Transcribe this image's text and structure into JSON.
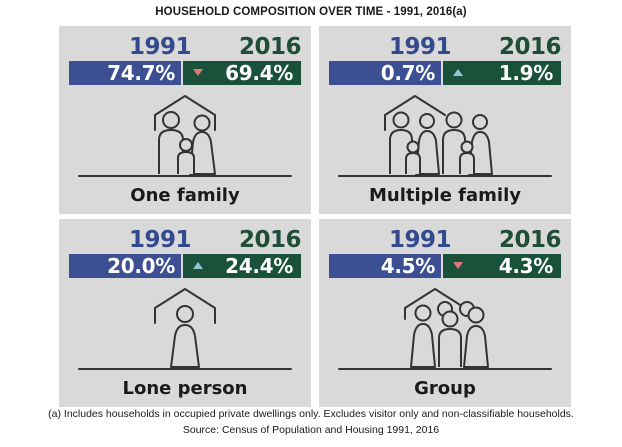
{
  "title": "HOUSEHOLD COMPOSITION OVER TIME - 1991, 2016(a)",
  "year_a": "1991",
  "year_b": "2016",
  "colors": {
    "year_1991": "#3c4f93",
    "year_2016": "#19513a",
    "decrease": "#e0787a",
    "increase": "#8fc7d9",
    "panel": "#d9d9d9"
  },
  "panels": [
    {
      "label": "One family",
      "v1991": "74.7%",
      "v2016": "69.4%",
      "trend": "down",
      "icon": "one-family-house-icon"
    },
    {
      "label": "Multiple family",
      "v1991": "0.7%",
      "v2016": "1.9%",
      "trend": "up",
      "icon": "multiple-family-house-icon"
    },
    {
      "label": "Lone person",
      "v1991": "20.0%",
      "v2016": "24.4%",
      "trend": "up",
      "icon": "lone-person-house-icon"
    },
    {
      "label": "Group",
      "v1991": "4.5%",
      "v2016": "4.3%",
      "trend": "down",
      "icon": "group-house-icon"
    }
  ],
  "footnote": "(a) Includes households in occupied private dwellings only. Excludes visitor only and non-classifiable households.",
  "source": "Source: Census of Population and Housing 1991, 2016"
}
